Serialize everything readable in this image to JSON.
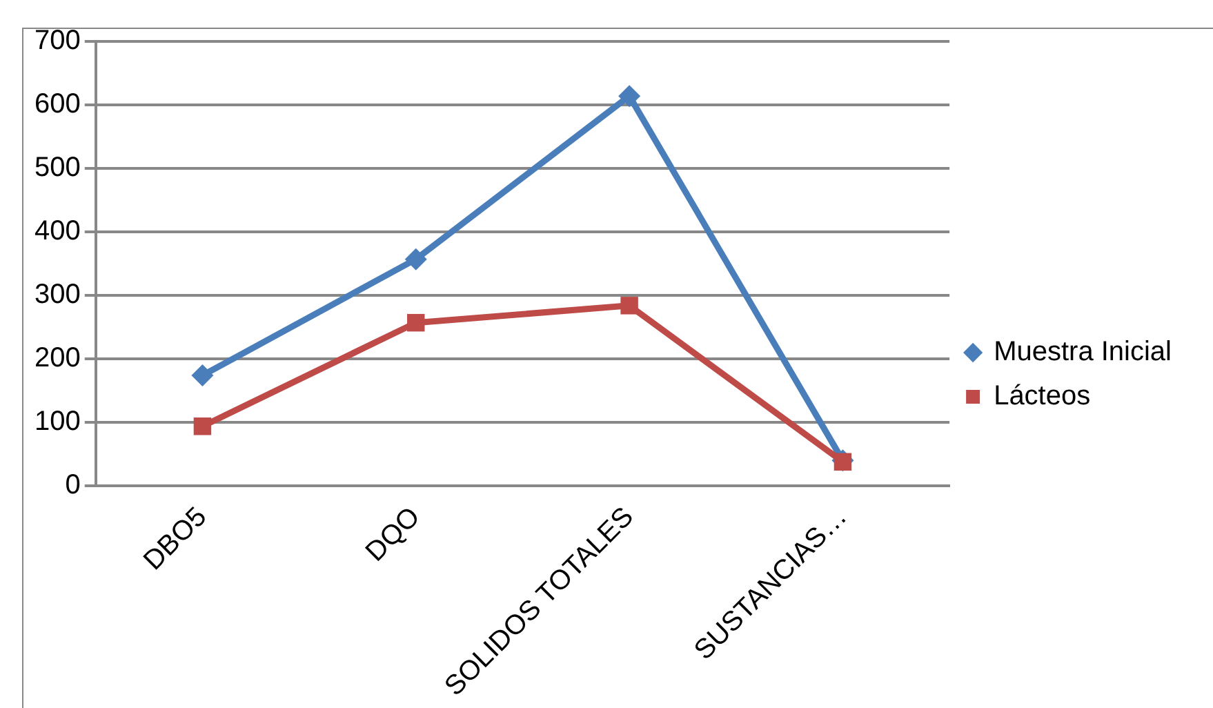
{
  "chart_data": {
    "type": "line",
    "categories": [
      "DBO5",
      "DQO",
      "SOLIDOS TOTALES",
      "SUSTANCIAS…"
    ],
    "series": [
      {
        "name": "Muestra Inicial",
        "color": "#4a7ebb",
        "marker": "diamond",
        "values": [
          174,
          357,
          614,
          40
        ]
      },
      {
        "name": "Lácteos",
        "color": "#be4b48",
        "marker": "square",
        "values": [
          94,
          257,
          284,
          38
        ]
      }
    ],
    "ylim": [
      0,
      700
    ],
    "yticks": [
      0,
      100,
      200,
      300,
      400,
      500,
      600,
      700
    ],
    "grid": "y",
    "legend": "right",
    "line_style": "solid"
  }
}
